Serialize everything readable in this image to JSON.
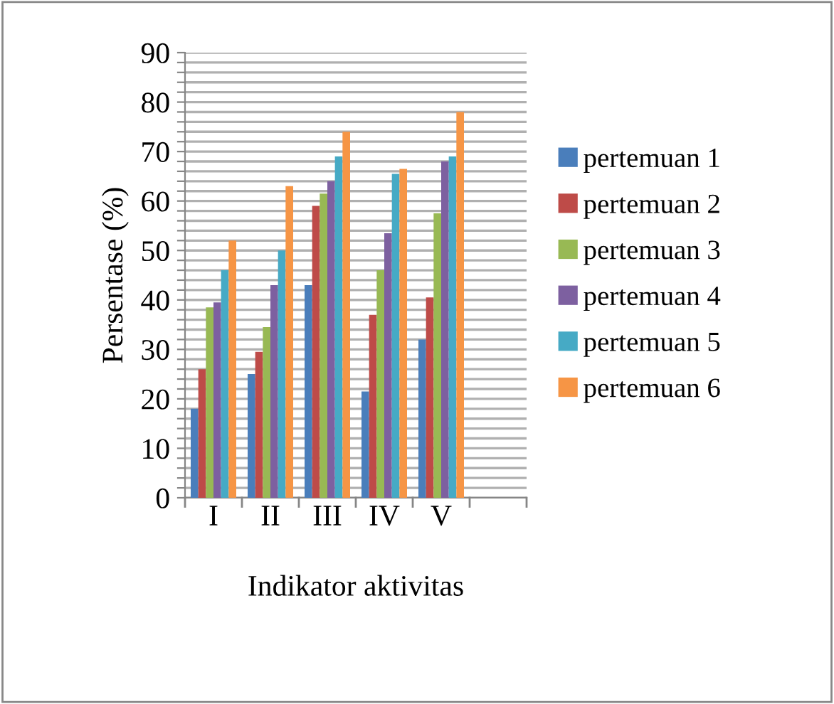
{
  "chart_data": {
    "type": "bar",
    "xlabel": "Indikator aktivitas",
    "ylabel": "Persentase (%)",
    "categories": [
      "I",
      "II",
      "III",
      "IV",
      "V",
      null
    ],
    "series": [
      {
        "name": "pertemuan 1",
        "color": "#4a7ebb",
        "values": [
          18,
          25,
          43,
          21.5,
          32,
          null
        ]
      },
      {
        "name": "pertemuan 2",
        "color": "#be4b48",
        "values": [
          26,
          29.5,
          59,
          37,
          40.5,
          null
        ]
      },
      {
        "name": "pertemuan 3",
        "color": "#98b954",
        "values": [
          38.5,
          34.5,
          61.5,
          46,
          57.5,
          null
        ]
      },
      {
        "name": "pertemuan 4",
        "color": "#7d60a0",
        "values": [
          39.5,
          43,
          64,
          53.5,
          68,
          null
        ]
      },
      {
        "name": "pertemuan 5",
        "color": "#46aac5",
        "values": [
          46,
          50,
          69,
          65.5,
          69,
          null
        ]
      },
      {
        "name": "pertemuan 6",
        "color": "#f69545",
        "values": [
          52,
          63,
          74,
          66.5,
          78,
          null
        ]
      }
    ],
    "ylim": [
      0,
      90
    ],
    "yticks": [
      0,
      {
        "value": 2,
        "label": null
      },
      {
        "value": 4,
        "label": null
      },
      {
        "value": 6,
        "label": null
      },
      {
        "value": 8,
        "label": null
      },
      10,
      {
        "value": 12,
        "label": null
      },
      {
        "value": 14,
        "label": null
      },
      {
        "value": 16,
        "label": null
      },
      {
        "value": 18,
        "label": null
      },
      20,
      {
        "value": 22,
        "label": null
      },
      {
        "value": 24,
        "label": null
      },
      {
        "value": 26,
        "label": null
      },
      {
        "value": 28,
        "label": null
      },
      30,
      {
        "value": 32,
        "label": null
      },
      {
        "value": 34,
        "label": null
      },
      {
        "value": 36,
        "label": null
      },
      {
        "value": 38,
        "label": null
      },
      40,
      {
        "value": 42,
        "label": null
      },
      {
        "value": 44,
        "label": null
      },
      {
        "value": 46,
        "label": null
      },
      {
        "value": 48,
        "label": null
      },
      50,
      {
        "value": 52,
        "label": null
      },
      {
        "value": 54,
        "label": null
      },
      {
        "value": 56,
        "label": null
      },
      {
        "value": 58,
        "label": null
      },
      60,
      {
        "value": 62,
        "label": null
      },
      {
        "value": 64,
        "label": null
      },
      {
        "value": 66,
        "label": null
      },
      {
        "value": 68,
        "label": null
      },
      70,
      {
        "value": 72,
        "label": null
      },
      {
        "value": 74,
        "label": null
      },
      {
        "value": 76,
        "label": null
      },
      {
        "value": 78,
        "label": null
      },
      80,
      {
        "value": 82,
        "label": null
      },
      {
        "value": 84,
        "label": null
      },
      {
        "value": 86,
        "label": null
      },
      {
        "value": 88,
        "label": null
      },
      90
    ],
    "grid": "y",
    "legend": "right"
  }
}
